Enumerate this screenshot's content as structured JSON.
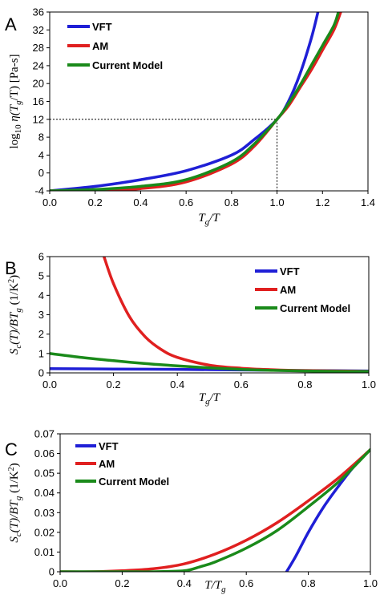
{
  "colors": {
    "VFT": "#1f1fd6",
    "AM": "#e02020",
    "Current Model": "#1a8a1a"
  },
  "chart_data": [
    {
      "panel": "A",
      "type": "line",
      "xlabel_html": [
        "T",
        "g",
        "/T"
      ],
      "ylabel_parts": [
        "log",
        "10",
        " η(T",
        "g",
        "/T) [Pa-s]"
      ],
      "xlim": [
        0,
        1.4
      ],
      "ylim": [
        -4,
        36
      ],
      "xticks": [
        "0.0",
        "0.2",
        "0.4",
        "0.6",
        "0.8",
        "1.0",
        "1.2",
        "1.4"
      ],
      "xtick_values": [
        0,
        0.2,
        0.4,
        0.6,
        0.8,
        1.0,
        1.2,
        1.4
      ],
      "yticks": [
        "-4",
        "0",
        "4",
        "8",
        "12",
        "16",
        "20",
        "24",
        "28",
        "32",
        "36"
      ],
      "ytick_values": [
        -4,
        0,
        4,
        8,
        12,
        16,
        20,
        24,
        28,
        32,
        36
      ],
      "legend": [
        "VFT",
        "AM",
        "Current Model"
      ],
      "reference_lines": {
        "x": 1.0,
        "y": 12
      },
      "series": [
        {
          "name": "VFT",
          "x": [
            0,
            0.2,
            0.4,
            0.6,
            0.8,
            0.9,
            1.0,
            1.05,
            1.1,
            1.15,
            1.18
          ],
          "y": [
            -4,
            -3,
            -1.5,
            0.5,
            4,
            7.5,
            12,
            16,
            22,
            30,
            36
          ]
        },
        {
          "name": "AM",
          "x": [
            0,
            0.2,
            0.4,
            0.6,
            0.8,
            0.9,
            1.0,
            1.05,
            1.1,
            1.15,
            1.2,
            1.25,
            1.28
          ],
          "y": [
            -4,
            -4,
            -3.5,
            -2,
            2,
            6,
            12,
            15,
            19,
            23,
            27.5,
            32,
            36
          ]
        },
        {
          "name": "Current Model",
          "x": [
            0,
            0.2,
            0.4,
            0.6,
            0.8,
            0.9,
            1.0,
            1.05,
            1.1,
            1.15,
            1.2,
            1.25,
            1.27
          ],
          "y": [
            -4,
            -3.7,
            -3,
            -1.5,
            2.5,
            6.5,
            12,
            15.5,
            19.5,
            24,
            28.5,
            33,
            36
          ]
        }
      ]
    },
    {
      "panel": "B",
      "type": "line",
      "xlabel_html": [
        "T",
        "g",
        "/T"
      ],
      "ylabel_parts": [
        "S",
        "c",
        "(T)/BT",
        "g",
        " (1/K",
        "2",
        ")"
      ],
      "xlim": [
        0,
        1.0
      ],
      "ylim": [
        0,
        6
      ],
      "xticks": [
        "0.0",
        "0.2",
        "0.4",
        "0.6",
        "0.8",
        "1.0"
      ],
      "xtick_values": [
        0,
        0.2,
        0.4,
        0.6,
        0.8,
        1.0
      ],
      "yticks": [
        "0",
        "1",
        "2",
        "3",
        "4",
        "5",
        "6"
      ],
      "ytick_values": [
        0,
        1,
        2,
        3,
        4,
        5,
        6
      ],
      "legend": [
        "VFT",
        "AM",
        "Current Model"
      ],
      "series": [
        {
          "name": "VFT",
          "x": [
            0,
            0.2,
            0.4,
            0.6,
            0.8,
            1.0
          ],
          "y": [
            0.22,
            0.2,
            0.18,
            0.15,
            0.12,
            0.1
          ]
        },
        {
          "name": "AM",
          "x": [
            0.17,
            0.2,
            0.25,
            0.3,
            0.35,
            0.4,
            0.5,
            0.6,
            0.7,
            0.8,
            0.9,
            1.0
          ],
          "y": [
            6.0,
            4.6,
            2.9,
            1.85,
            1.2,
            0.8,
            0.4,
            0.24,
            0.16,
            0.12,
            0.1,
            0.08
          ]
        },
        {
          "name": "Current Model",
          "x": [
            0,
            0.1,
            0.2,
            0.3,
            0.4,
            0.5,
            0.6,
            0.7,
            0.8,
            0.9,
            1.0
          ],
          "y": [
            1.0,
            0.8,
            0.63,
            0.48,
            0.36,
            0.26,
            0.18,
            0.13,
            0.1,
            0.08,
            0.07
          ]
        }
      ]
    },
    {
      "panel": "C",
      "type": "line",
      "xlabel_html": [
        "T/T",
        "g",
        ""
      ],
      "ylabel_parts": [
        "S",
        "c",
        "(T)/BT",
        "g",
        " (1/K",
        "2",
        ")"
      ],
      "xlim": [
        0,
        1.0
      ],
      "ylim": [
        0,
        0.07
      ],
      "xticks": [
        "0.0",
        "0.2",
        "0.4",
        "0.6",
        "0.8",
        "1.0"
      ],
      "xtick_values": [
        0,
        0.2,
        0.4,
        0.6,
        0.8,
        1.0
      ],
      "yticks": [
        "0",
        "0.01",
        "0.02",
        "0.03",
        "0.04",
        "0.05",
        "0.06",
        "0.07"
      ],
      "ytick_values": [
        0,
        0.01,
        0.02,
        0.03,
        0.04,
        0.05,
        0.06,
        0.07
      ],
      "legend": [
        "VFT",
        "AM",
        "Current Model"
      ],
      "series": [
        {
          "name": "VFT",
          "x": [
            0.73,
            0.76,
            0.8,
            0.85,
            0.9,
            0.95,
            1.0
          ],
          "y": [
            0,
            0.008,
            0.02,
            0.033,
            0.044,
            0.054,
            0.062
          ]
        },
        {
          "name": "AM",
          "x": [
            0,
            0.1,
            0.2,
            0.3,
            0.4,
            0.5,
            0.6,
            0.7,
            0.8,
            0.9,
            1.0
          ],
          "y": [
            0,
            0,
            0.0005,
            0.0015,
            0.004,
            0.009,
            0.016,
            0.025,
            0.036,
            0.048,
            0.062
          ]
        },
        {
          "name": "Current Model",
          "x": [
            0,
            0.2,
            0.3,
            0.4,
            0.45,
            0.5,
            0.6,
            0.7,
            0.8,
            0.9,
            1.0
          ],
          "y": [
            0,
            0,
            0,
            0.0005,
            0.0025,
            0.005,
            0.012,
            0.021,
            0.033,
            0.046,
            0.062
          ]
        }
      ]
    }
  ]
}
